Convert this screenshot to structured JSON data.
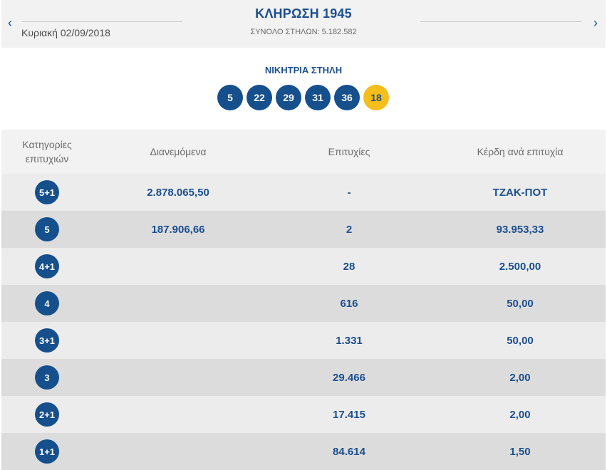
{
  "header": {
    "title": "ΚΛΗΡΩΣΗ 1945",
    "date": "Κυριακή 02/09/2018",
    "total_columns": "ΣΥΝΟΛΟ ΣΤΗΛΩΝ: 5.182.582",
    "prev_icon": "chevron-left-icon",
    "next_icon": "chevron-right-icon",
    "prev_glyph": "‹",
    "next_glyph": "›"
  },
  "winning": {
    "title": "ΝΙΚΗΤΡΙΑ ΣΤΗΛΗ",
    "numbers": [
      "5",
      "22",
      "29",
      "31",
      "36"
    ],
    "joker": "18"
  },
  "table": {
    "headers": {
      "category": "Κατηγορίες επιτυχιών",
      "distributed": "Διανεμόμενα",
      "winners": "Επιτυχίες",
      "prize": "Κέρδη ανά επιτυχία"
    },
    "rows": [
      {
        "category": "5+1",
        "distributed": "2.878.065,50",
        "winners": "-",
        "prize": "ΤΖΑΚ-ΠΟΤ"
      },
      {
        "category": "5",
        "distributed": "187.906,66",
        "winners": "2",
        "prize": "93.953,33"
      },
      {
        "category": "4+1",
        "distributed": "",
        "winners": "28",
        "prize": "2.500,00"
      },
      {
        "category": "4",
        "distributed": "",
        "winners": "616",
        "prize": "50,00"
      },
      {
        "category": "3+1",
        "distributed": "",
        "winners": "1.331",
        "prize": "50,00"
      },
      {
        "category": "3",
        "distributed": "",
        "winners": "29.466",
        "prize": "2,00"
      },
      {
        "category": "2+1",
        "distributed": "",
        "winners": "17.415",
        "prize": "2,00"
      },
      {
        "category": "1+1",
        "distributed": "",
        "winners": "84.614",
        "prize": "1,50"
      }
    ]
  },
  "colors": {
    "primary": "#154f8c",
    "joker": "#f5be1a",
    "row_light": "#ececec",
    "row_dark": "#dcdcdc",
    "header_bg": "#f2f2f2"
  }
}
